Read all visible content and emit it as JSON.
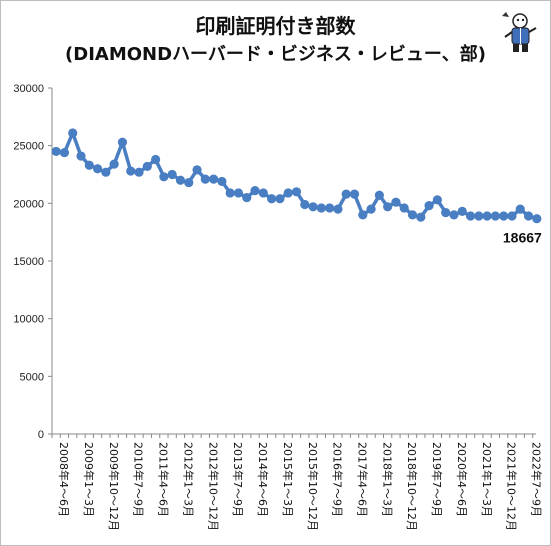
{
  "header": {
    "title": "印刷証明付き部数",
    "subtitle": "(DIAMONDハーバード・ビジネス・レビュー、部)",
    "mascot_icon": "mascot-figure-icon"
  },
  "colors": {
    "series": "#4a7ec2",
    "axis": "#888888",
    "grid": "#e0e0e0"
  },
  "chart_data": {
    "type": "line",
    "title": "印刷証明付き部数",
    "subtitle": "(DIAMONDハーバード・ビジネス・レビュー、部)",
    "ylim": [
      0,
      30000
    ],
    "yticks": [
      0,
      5000,
      10000,
      15000,
      20000,
      25000,
      30000
    ],
    "grid": false,
    "x_tick_labels": [
      "2008年4～6月",
      "2009年1～3月",
      "2009年10～12月",
      "2010年7～9月",
      "2011年4～6月",
      "2012年1～3月",
      "2012年10～12月",
      "2013年7～9月",
      "2014年4～6月",
      "2015年1～3月",
      "2015年10～12月",
      "2016年7～9月",
      "2017年4～6月",
      "2018年1～3月",
      "2018年10～12月",
      "2019年7～9月",
      "2020年4～6月",
      "2021年1～3月",
      "2021年10～12月",
      "2022年7～9月"
    ],
    "label_every": 3,
    "series": [
      {
        "values": [
          24500,
          24400,
          26100,
          24100,
          23300,
          23000,
          22700,
          23400,
          25300,
          22800,
          22700,
          23200,
          23800,
          22300,
          22500,
          22000,
          21800,
          22900,
          22100,
          22100,
          21900,
          20900,
          20900,
          20500,
          21100,
          20900,
          20400,
          20400,
          20900,
          21000,
          19900,
          19700,
          19600,
          19600,
          19500,
          20800,
          20800,
          19000,
          19500,
          20700,
          19700,
          20100,
          19600,
          19000,
          18800,
          19800,
          20300,
          19200,
          19000,
          19300,
          18900,
          18900,
          18900,
          18900,
          18900,
          18900,
          19500,
          18900,
          18667
        ]
      }
    ],
    "last_value_label": "18667"
  }
}
